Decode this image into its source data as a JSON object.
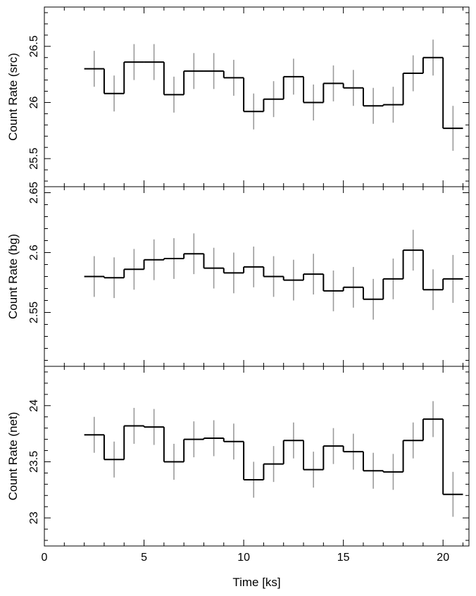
{
  "chart_data": {
    "type": "line",
    "shared_x": {
      "label": "Time [ks]",
      "range": [
        0,
        21.3
      ],
      "ticks": [
        0,
        5,
        10,
        15,
        20
      ],
      "tick_labels": [
        "0",
        "5",
        "10",
        "15",
        "20"
      ],
      "bin_edges": [
        2,
        3,
        4,
        5,
        6,
        7,
        8,
        9,
        10,
        11,
        12,
        13,
        14,
        15,
        16,
        17,
        18,
        19,
        20,
        21
      ],
      "bin_centers": [
        2.5,
        3.5,
        4.5,
        5.5,
        6.5,
        7.5,
        8.5,
        9.5,
        10.5,
        11.5,
        12.5,
        13.5,
        14.5,
        15.5,
        16.5,
        17.5,
        18.5,
        19.5,
        20.5
      ]
    },
    "panels": [
      {
        "ylabel": "Count Rate (src)",
        "ylim": [
          25.25,
          26.85
        ],
        "yticks": [
          25.5,
          26,
          26.5
        ],
        "ytick_labels": [
          "25.5",
          "26",
          "26.5"
        ],
        "values": [
          26.3,
          26.08,
          26.36,
          26.36,
          26.07,
          26.28,
          26.28,
          26.22,
          25.92,
          26.03,
          26.23,
          26.0,
          26.17,
          26.13,
          25.97,
          25.98,
          26.26,
          26.4,
          25.77
        ],
        "errors": [
          0.16,
          0.16,
          0.16,
          0.16,
          0.16,
          0.16,
          0.16,
          0.16,
          0.16,
          0.16,
          0.16,
          0.16,
          0.16,
          0.16,
          0.16,
          0.16,
          0.16,
          0.16,
          0.2
        ]
      },
      {
        "ylabel": "Count Rate (bg)",
        "ylim": [
          2.505,
          2.655
        ],
        "yticks": [
          2.55,
          2.6,
          2.65
        ],
        "ytick_labels": [
          "2.55",
          "2.6",
          "2.65"
        ],
        "values": [
          2.58,
          2.579,
          2.586,
          2.594,
          2.595,
          2.599,
          2.587,
          2.583,
          2.588,
          2.58,
          2.577,
          2.582,
          2.568,
          2.571,
          2.561,
          2.578,
          2.602,
          2.569,
          2.578
        ],
        "errors": [
          0.017,
          0.017,
          0.017,
          0.017,
          0.017,
          0.017,
          0.017,
          0.017,
          0.017,
          0.017,
          0.017,
          0.017,
          0.017,
          0.017,
          0.017,
          0.017,
          0.017,
          0.017,
          0.02
        ]
      },
      {
        "ylabel": "Count Rate (net)",
        "ylim": [
          22.75,
          24.35
        ],
        "yticks": [
          23,
          23.5,
          24
        ],
        "ytick_labels": [
          "23",
          "23.5",
          "24"
        ],
        "values": [
          23.74,
          23.52,
          23.82,
          23.81,
          23.5,
          23.7,
          23.71,
          23.68,
          23.34,
          23.48,
          23.69,
          23.43,
          23.64,
          23.59,
          23.42,
          23.41,
          23.69,
          23.88,
          23.21
        ],
        "errors": [
          0.16,
          0.16,
          0.16,
          0.16,
          0.16,
          0.16,
          0.16,
          0.16,
          0.16,
          0.16,
          0.16,
          0.16,
          0.16,
          0.16,
          0.16,
          0.16,
          0.16,
          0.16,
          0.2
        ]
      }
    ],
    "colors": {
      "histogram": "#000000",
      "errorbar": "#9a9a9a",
      "frame": "#000000"
    }
  }
}
